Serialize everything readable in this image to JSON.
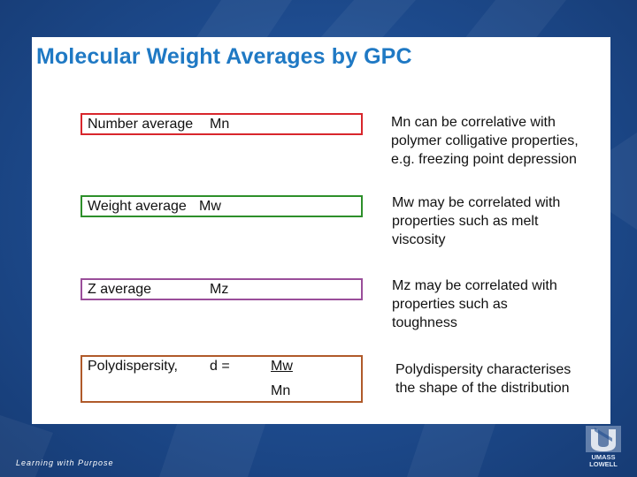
{
  "slide": {
    "title": "Molecular Weight Averages by GPC",
    "rows": [
      {
        "label": "Number average",
        "symbol": "Mn",
        "border_color": "#d8262c",
        "description": [
          "Mn can be correlative with",
          "polymer colligative properties,",
          "e.g. freezing point depression"
        ]
      },
      {
        "label": "Weight average",
        "symbol": "Mw",
        "border_color": "#2d8f2a",
        "description": [
          "Mw may be correlated with",
          "properties such as melt",
          "viscosity"
        ]
      },
      {
        "label": "Z average",
        "symbol": "Mz",
        "border_color": "#9a4e9a",
        "description": [
          "Mz may be correlated with",
          "properties such as",
          "toughness"
        ]
      },
      {
        "label": "Polydispersity,",
        "symbol": "d =",
        "numerator": "Mw",
        "denominator": "Mn",
        "border_color": "#b05a2a",
        "description": [
          "Polydispersity characterises",
          "the shape of the distribution"
        ]
      }
    ]
  },
  "footer": {
    "tagline": "Learning with Purpose",
    "logo_text_top": "UMASS",
    "logo_text_bottom": "LOWELL",
    "logo_icon": "umass-lowell-emblem-icon"
  },
  "colors": {
    "title": "#1f79c4",
    "background": "#1f4c8f"
  }
}
